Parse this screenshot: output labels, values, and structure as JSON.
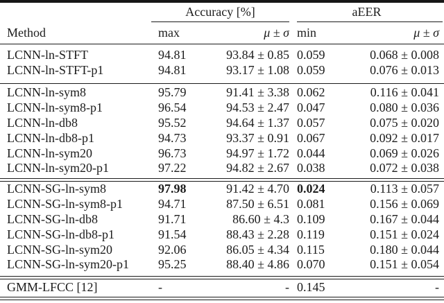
{
  "table": {
    "header": {
      "method_label": "Method",
      "col_groups": {
        "accuracy": "Accuracy [%]",
        "aeer": "aEER"
      },
      "sub_headers": {
        "max": "max",
        "acc_musigma": "μ ± σ",
        "min": "min",
        "eer_musigma": "μ ± σ"
      }
    },
    "groups": [
      {
        "rule_after": "single",
        "rows": [
          {
            "method": "LCNN-ln-STFT",
            "max": "94.81",
            "acc": "93.84 ± 0.85",
            "min": "0.059",
            "eer": "0.068 ± 0.008"
          },
          {
            "method": "LCNN-ln-STFT-p1",
            "max": "94.81",
            "acc": "93.17 ± 1.08",
            "min": "0.059",
            "eer": "0.076 ± 0.013"
          }
        ]
      },
      {
        "rule_after": "double",
        "rows": [
          {
            "method": "LCNN-ln-sym8",
            "max": "95.79",
            "acc": "91.41 ± 3.38",
            "min": "0.062",
            "eer": "0.116 ± 0.041"
          },
          {
            "method": "LCNN-ln-sym8-p1",
            "max": "96.54",
            "acc": "94.53 ± 2.47",
            "min": "0.047",
            "eer": "0.080 ± 0.036"
          },
          {
            "method": "LCNN-ln-db8",
            "max": "95.52",
            "acc": "94.64 ± 1.37",
            "min": "0.057",
            "eer": "0.075 ± 0.020"
          },
          {
            "method": "LCNN-ln-db8-p1",
            "max": "94.73",
            "acc": "93.37 ± 0.91",
            "min": "0.067",
            "eer": "0.092 ± 0.017"
          },
          {
            "method": "LCNN-ln-sym20",
            "max": "96.73",
            "acc": "94.97 ± 1.72",
            "min": "0.044",
            "eer": "0.069 ± 0.026"
          },
          {
            "method": "LCNN-ln-sym20-p1",
            "max": "97.22",
            "acc": "94.82 ± 2.67",
            "min": "0.038",
            "eer": "0.072 ± 0.038"
          }
        ]
      },
      {
        "rule_after": "double",
        "rows": [
          {
            "method": "LCNN-SG-ln-sym8",
            "max": "97.98",
            "bold_max": true,
            "acc": "91.42 ± 4.70",
            "min": "0.024",
            "bold_min": true,
            "eer": "0.113 ± 0.057"
          },
          {
            "method": "LCNN-SG-ln-sym8-p1",
            "max": "94.71",
            "acc": "87.50 ± 6.51",
            "min": "0.081",
            "eer": "0.156 ± 0.069"
          },
          {
            "method": "LCNN-SG-ln-db8",
            "max": "91.71",
            "acc": "86.60 ± 4.3",
            "min": "0.109",
            "eer": "0.167 ± 0.044"
          },
          {
            "method": "LCNN-SG-ln-db8-p1",
            "max": "91.54",
            "acc": "88.43 ± 2.28",
            "min": "0.119",
            "eer": "0.151 ± 0.024"
          },
          {
            "method": "LCNN-SG-ln-sym20",
            "max": "92.06",
            "acc": "86.05 ± 4.34",
            "min": "0.115",
            "eer": "0.180 ± 0.044"
          },
          {
            "method": "LCNN-SG-ln-sym20-p1",
            "max": "95.25",
            "acc": "88.40 ± 4.86",
            "min": "0.070",
            "eer": "0.151 ± 0.054"
          }
        ]
      },
      {
        "rule_after": "double-bottom",
        "rows": [
          {
            "method": "GMM-LFCC [12]",
            "max": "-",
            "acc": "-",
            "min": "0.145",
            "eer": "-"
          }
        ]
      }
    ],
    "colors": {
      "rule": "#1a1a1a",
      "text": "#1c1c1c",
      "background": "#ffffff"
    }
  }
}
